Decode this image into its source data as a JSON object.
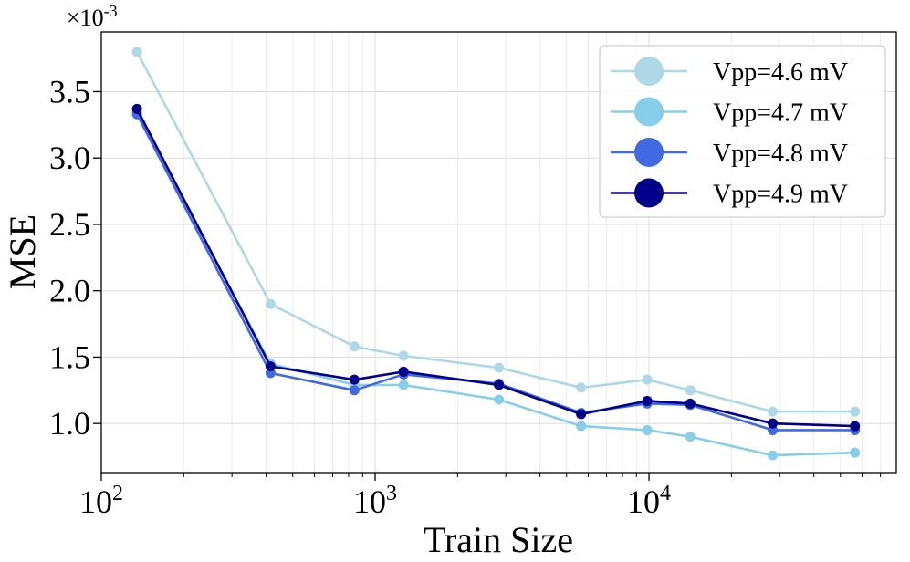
{
  "chart_data": {
    "type": "line",
    "xlabel": "Train Size",
    "ylabel": "MSE",
    "x_scale": "log",
    "xlim": [
      100,
      80000
    ],
    "ylim": [
      0.00063,
      0.00395
    ],
    "y_offset_label": "×10",
    "y_offset_exponent": "-3",
    "x_ticks": [
      {
        "value": 100,
        "base": "10",
        "exp": "2"
      },
      {
        "value": 1000,
        "base": "10",
        "exp": "3"
      },
      {
        "value": 10000,
        "base": "10",
        "exp": "4"
      }
    ],
    "y_ticks": [
      {
        "value": 0.001,
        "label": "1.0"
      },
      {
        "value": 0.0015,
        "label": "1.5"
      },
      {
        "value": 0.002,
        "label": "2.0"
      },
      {
        "value": 0.0025,
        "label": "2.5"
      },
      {
        "value": 0.003,
        "label": "3.0"
      },
      {
        "value": 0.0035,
        "label": "3.5"
      }
    ],
    "grid": true,
    "legend_position": "top-right",
    "x": [
      135,
      415,
      840,
      1270,
      2830,
      5650,
      9850,
      14150,
      28300,
      56500
    ],
    "series": [
      {
        "name": "Vpp=4.6 mV",
        "color": "#add8e6",
        "values": [
          0.0038,
          0.0019,
          0.00158,
          0.00151,
          0.00142,
          0.00127,
          0.00133,
          0.00125,
          0.00109,
          0.00109
        ]
      },
      {
        "name": "Vpp=4.7 mV",
        "color": "#87ceeb",
        "values": [
          0.00334,
          0.00145,
          0.00129,
          0.00129,
          0.00118,
          0.00098,
          0.00095,
          0.0009,
          0.00076,
          0.00078
        ]
      },
      {
        "name": "Vpp=4.8 mV",
        "color": "#4169e1",
        "values": [
          0.00333,
          0.00138,
          0.00125,
          0.00137,
          0.0013,
          0.00108,
          0.00115,
          0.00114,
          0.00095,
          0.00095
        ]
      },
      {
        "name": "Vpp=4.9 mV",
        "color": "#00008b",
        "values": [
          0.00337,
          0.00143,
          0.00133,
          0.00139,
          0.00129,
          0.00107,
          0.00117,
          0.00115,
          0.001,
          0.00098
        ]
      }
    ]
  }
}
